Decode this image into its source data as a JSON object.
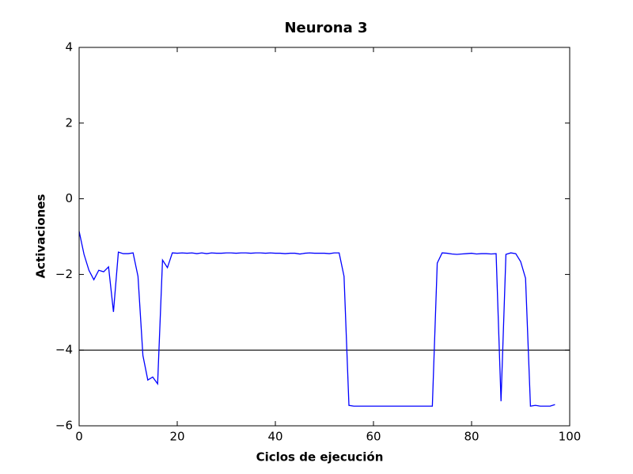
{
  "chart_data": {
    "type": "line",
    "title": "Neurona 3",
    "x_label": "Ciclos de ejecución",
    "y_label": "Activaciones",
    "x": [
      0,
      1,
      2,
      3,
      4,
      5,
      6,
      7,
      8,
      9,
      10,
      11,
      12,
      13,
      14,
      15,
      16,
      17,
      18,
      19,
      20,
      21,
      22,
      23,
      24,
      25,
      26,
      27,
      28,
      29,
      30,
      31,
      32,
      33,
      34,
      35,
      36,
      37,
      38,
      39,
      40,
      41,
      42,
      43,
      44,
      45,
      46,
      47,
      48,
      49,
      50,
      51,
      52,
      53,
      54,
      55,
      56,
      57,
      58,
      59,
      60,
      61,
      62,
      63,
      64,
      65,
      66,
      67,
      68,
      69,
      70,
      71,
      72,
      73,
      74,
      75,
      76,
      77,
      78,
      79,
      80,
      81,
      82,
      83,
      84,
      85,
      86,
      87,
      88,
      89,
      90,
      91,
      92,
      93,
      94,
      95,
      96,
      97
    ],
    "series": [
      {
        "color": "#0000ff",
        "values": [
          -0.86,
          -1.47,
          -1.89,
          -2.14,
          -1.89,
          -1.93,
          -1.8,
          -2.99,
          -1.41,
          -1.45,
          -1.45,
          -1.43,
          -2.05,
          -4.14,
          -4.79,
          -4.71,
          -4.89,
          -1.62,
          -1.82,
          -1.43,
          -1.44,
          -1.43,
          -1.44,
          -1.43,
          -1.45,
          -1.43,
          -1.45,
          -1.43,
          -1.44,
          -1.44,
          -1.43,
          -1.43,
          -1.44,
          -1.43,
          -1.43,
          -1.44,
          -1.43,
          -1.43,
          -1.44,
          -1.43,
          -1.44,
          -1.44,
          -1.45,
          -1.44,
          -1.44,
          -1.46,
          -1.44,
          -1.43,
          -1.44,
          -1.44,
          -1.44,
          -1.45,
          -1.43,
          -1.43,
          -2.05,
          -5.46,
          -5.48,
          -5.48,
          -5.48,
          -5.48,
          -5.48,
          -5.48,
          -5.48,
          -5.48,
          -5.48,
          -5.48,
          -5.48,
          -5.48,
          -5.48,
          -5.48,
          -5.48,
          -5.48,
          -5.48,
          -1.7,
          -1.43,
          -1.44,
          -1.46,
          -1.47,
          -1.46,
          -1.45,
          -1.44,
          -1.46,
          -1.45,
          -1.45,
          -1.46,
          -1.45,
          -5.35,
          -1.47,
          -1.43,
          -1.45,
          -1.66,
          -2.1,
          -5.48,
          -5.46,
          -5.48,
          -5.48,
          -5.48,
          -5.44
        ]
      }
    ],
    "hlines": [
      {
        "value": -4,
        "color": "#000000"
      }
    ],
    "xlim": [
      0,
      100
    ],
    "xticks": [
      0,
      20,
      40,
      60,
      80,
      100
    ],
    "ylim": [
      -6,
      4
    ],
    "yticks": [
      {
        "value": -6,
        "label": "−6"
      },
      {
        "value": -4,
        "label": "−4"
      },
      {
        "value": -2,
        "label": "−2"
      },
      0,
      2,
      4
    ]
  }
}
